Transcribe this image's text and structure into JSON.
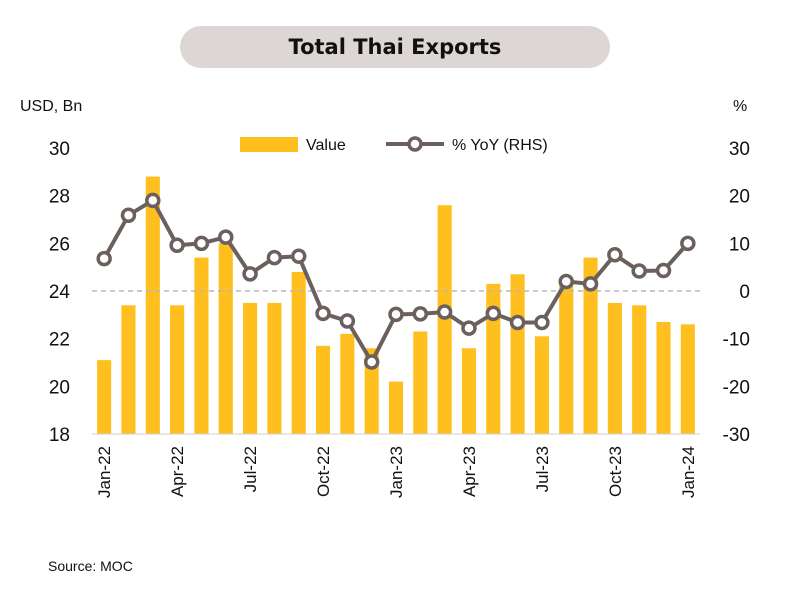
{
  "header": {
    "title": "Total Thai Exports"
  },
  "units": {
    "left": "USD, Bn",
    "right": "%"
  },
  "source": "Source: MOC",
  "colors": {
    "bar": "#FFBF1F",
    "line": "#6b605d",
    "zero_line": "#b8b8b8"
  },
  "chart_data": {
    "type": "bar+line",
    "categories": [
      "Jan-22",
      "Feb-22",
      "Mar-22",
      "Apr-22",
      "May-22",
      "Jun-22",
      "Jul-22",
      "Aug-22",
      "Sep-22",
      "Oct-22",
      "Nov-22",
      "Dec-22",
      "Jan-23",
      "Feb-23",
      "Mar-23",
      "Apr-23",
      "May-23",
      "Jun-23",
      "Jul-23",
      "Aug-23",
      "Sep-23",
      "Oct-23",
      "Nov-23",
      "Dec-23",
      "Jan-24"
    ],
    "xtick_labels": [
      "Jan-22",
      "Apr-22",
      "Jul-22",
      "Oct-22",
      "Jan-23",
      "Apr-23",
      "Jul-23",
      "Oct-23",
      "Jan-24"
    ],
    "series": [
      {
        "name": "Value",
        "type": "bar",
        "axis": "left",
        "values": [
          21.1,
          23.4,
          28.8,
          23.4,
          25.4,
          26.0,
          23.5,
          23.5,
          24.8,
          21.7,
          22.2,
          21.6,
          20.2,
          22.3,
          27.6,
          21.6,
          24.3,
          24.7,
          22.1,
          24.3,
          25.4,
          23.5,
          23.4,
          22.7,
          22.6
        ]
      },
      {
        "name": "% YoY (RHS)",
        "type": "line",
        "axis": "right",
        "values": [
          6.8,
          15.9,
          19.0,
          9.6,
          10.0,
          11.3,
          3.6,
          7.0,
          7.3,
          -4.7,
          -6.3,
          -14.9,
          -4.9,
          -4.8,
          -4.4,
          -7.8,
          -4.7,
          -6.6,
          -6.6,
          2.0,
          1.5,
          7.6,
          4.2,
          4.3,
          10.0
        ]
      }
    ],
    "y_left": {
      "label": "USD, Bn",
      "range": [
        18,
        30
      ],
      "ticks": [
        18,
        20,
        22,
        24,
        26,
        28,
        30
      ]
    },
    "y_right": {
      "label": "%",
      "range": [
        -30,
        30
      ],
      "ticks": [
        -30,
        -20,
        -10,
        0,
        10,
        20,
        30
      ]
    },
    "zero_line": "dashed",
    "grid": false,
    "legend": "top-center"
  }
}
